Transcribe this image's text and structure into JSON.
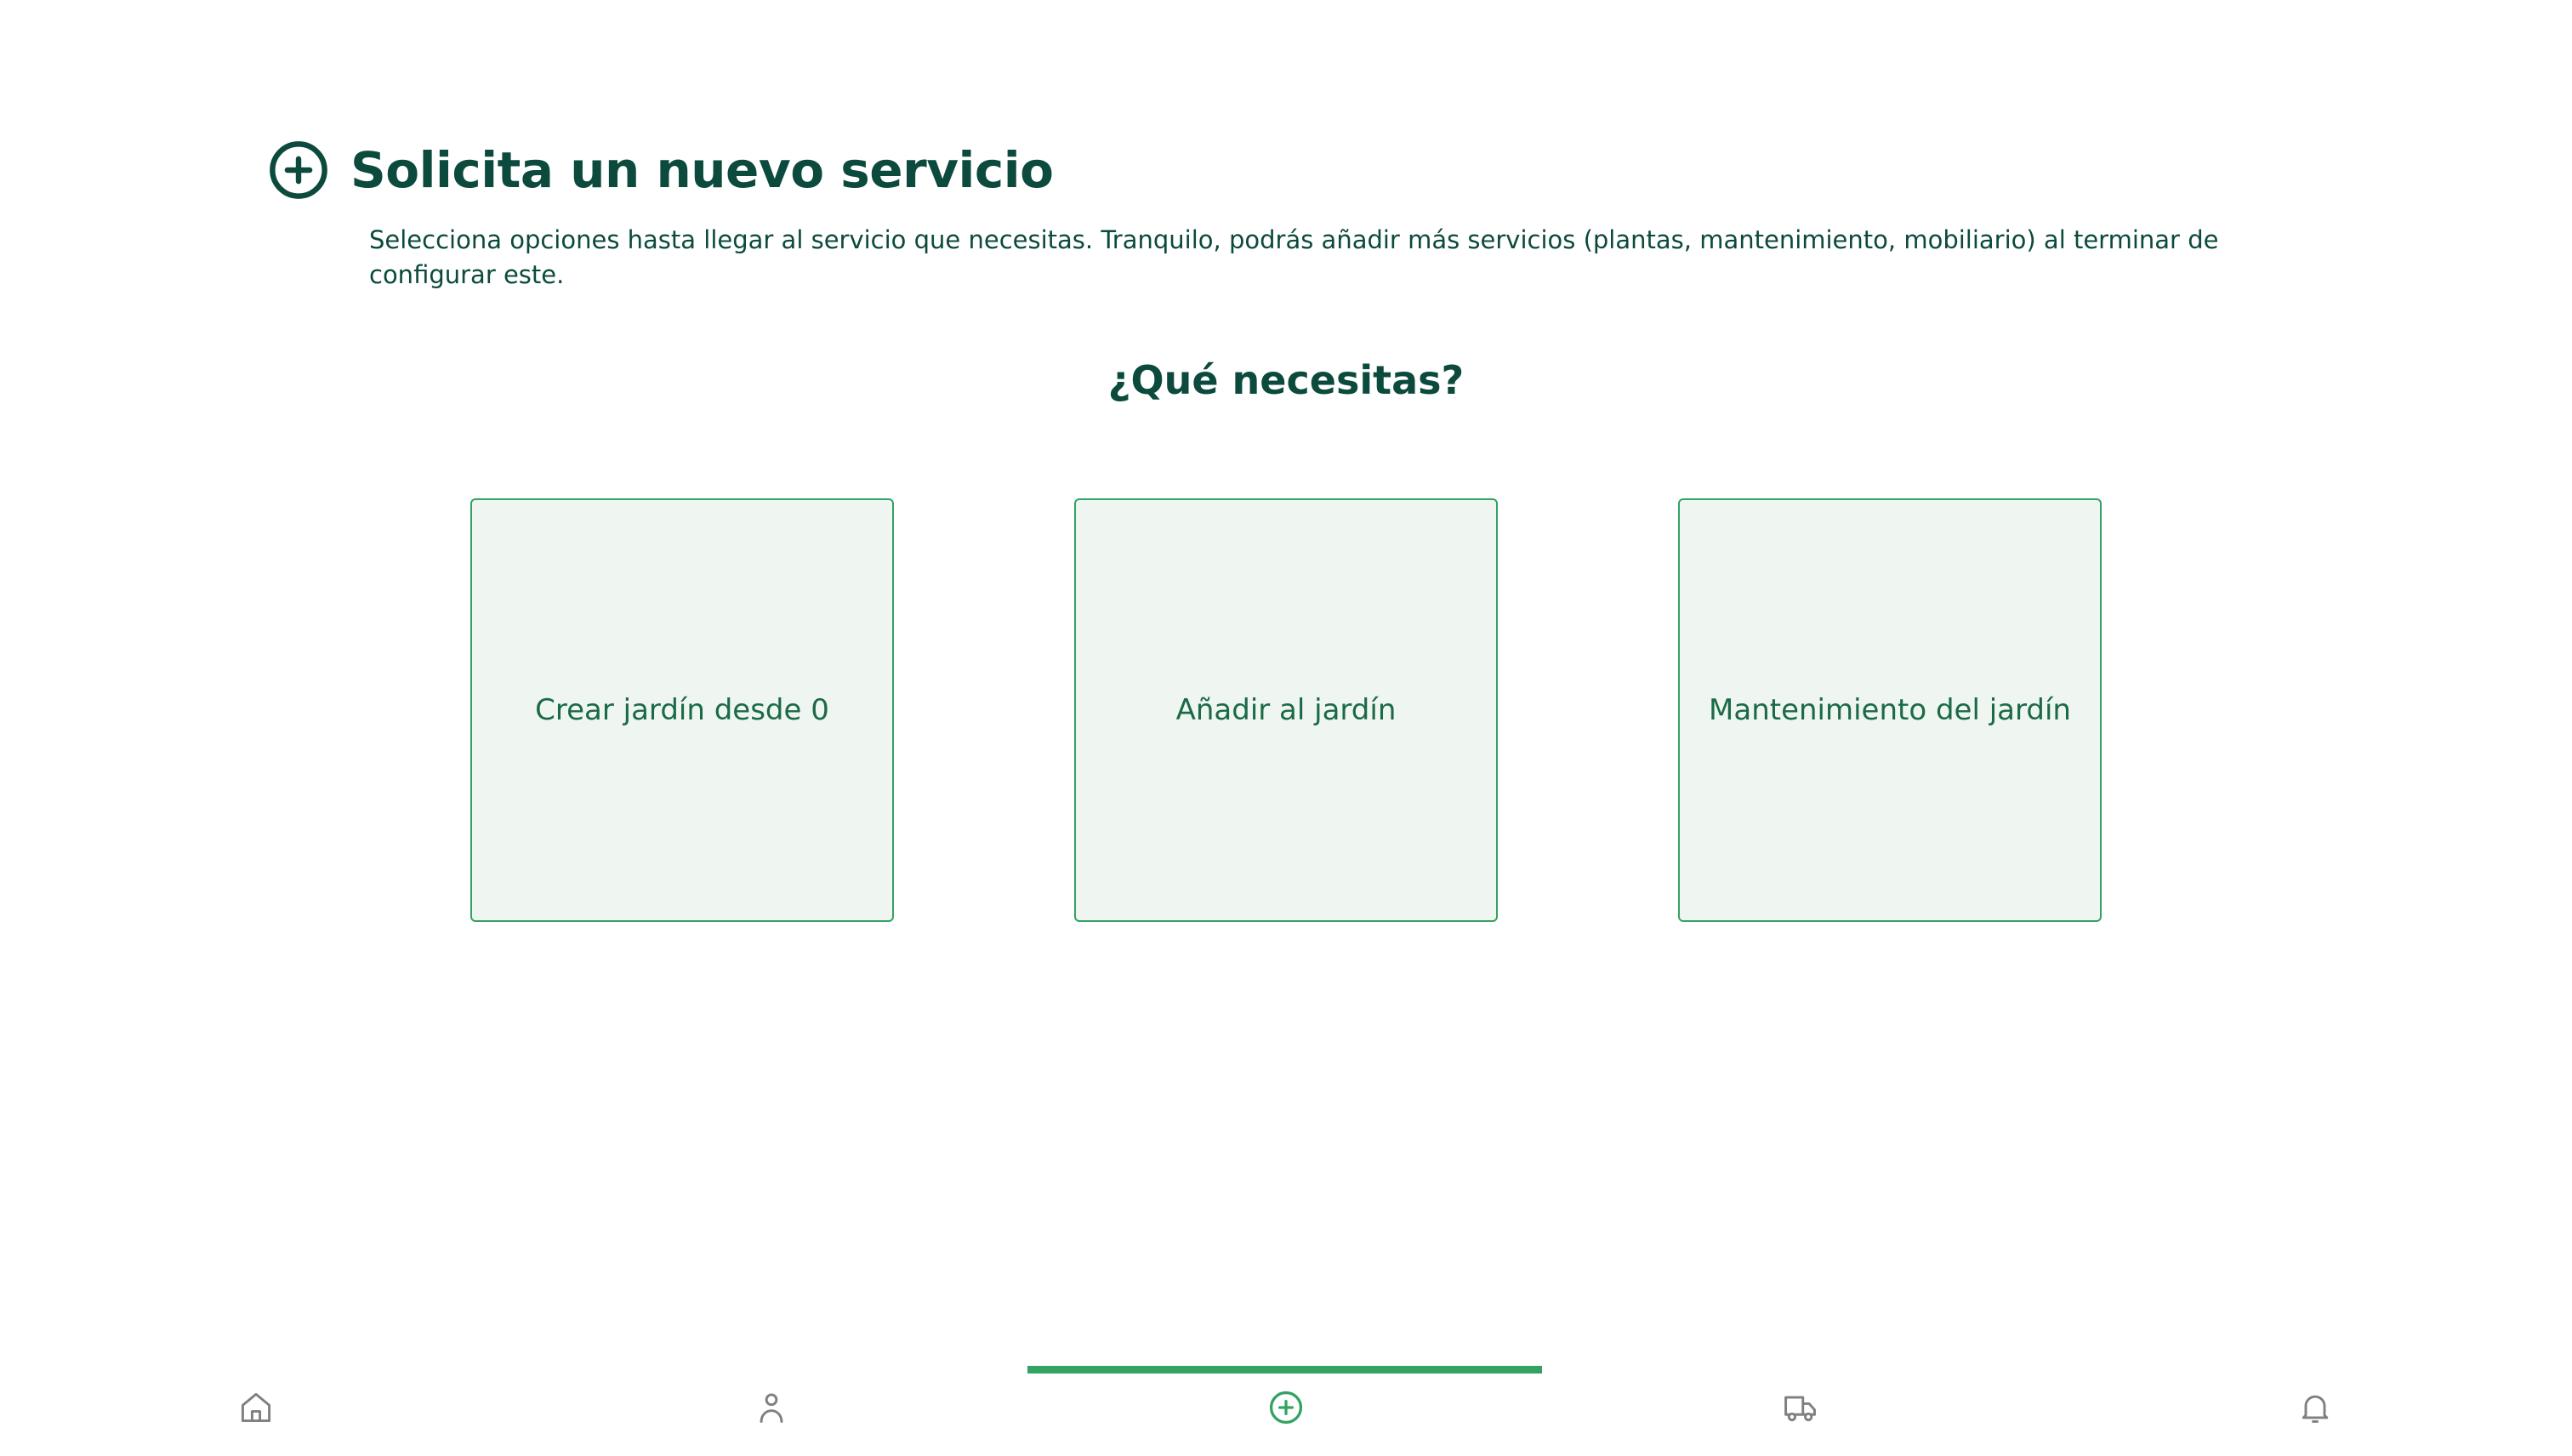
{
  "header": {
    "title": "Solicita un nuevo servicio",
    "icon": "plus-circle-icon",
    "subtitle": "Selecciona opciones hasta llegar al servicio que necesitas. Tranquilo, podrás añadir más servicios (plantas, mantenimiento, mobiliario) al terminar de configurar este."
  },
  "question": "¿Qué necesitas?",
  "options": [
    {
      "label": "Crear jardín desde 0"
    },
    {
      "label": "Añadir al jardín"
    },
    {
      "label": "Mantenimiento del jardín"
    }
  ],
  "bottom_nav": {
    "items": [
      {
        "icon": "home-icon"
      },
      {
        "icon": "user-icon"
      },
      {
        "icon": "plus-circle-icon",
        "active": true
      },
      {
        "icon": "truck-icon"
      },
      {
        "icon": "bell-icon"
      }
    ]
  },
  "colors": {
    "primary": "#0b4a3c",
    "accent": "#34a263",
    "card_bg": "#eff6f1",
    "inactive_icon": "#808080"
  }
}
